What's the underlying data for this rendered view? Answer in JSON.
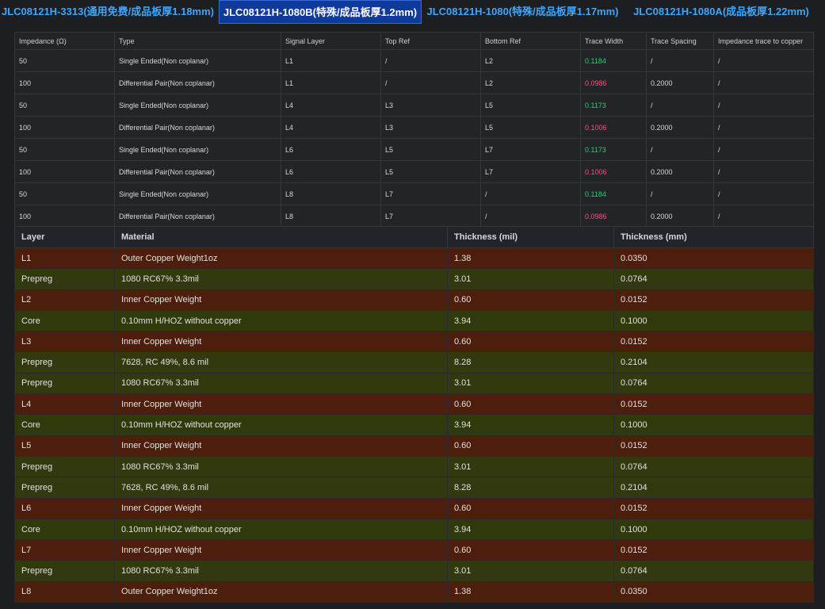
{
  "tabs": [
    {
      "label": "JLC08121H-3313(通用免费/成品板厚1.18mm)",
      "active": false
    },
    {
      "label": "JLC08121H-1080B(特殊/成品板厚1.2mm)",
      "active": true
    },
    {
      "label": "JLC08121H-1080(特殊/成品板厚1.17mm)",
      "active": false
    },
    {
      "label": "JLC08121H-1080A(成品板厚1.22mm)",
      "active": false
    }
  ],
  "impedance_table": {
    "headers": [
      "Impedance (Ω)",
      "Type",
      "Signal Layer",
      "Top Ref",
      "Bottom Ref",
      "Trace Width",
      "Trace Spacing",
      "Impedance trace to copper"
    ],
    "rows": [
      [
        "50",
        "Single Ended(Non coplanar)",
        "L1",
        "/",
        "L2",
        "0.1184",
        "/",
        "/"
      ],
      [
        "100",
        "Differential Pair(Non coplanar)",
        "L1",
        "/",
        "L2",
        "0.0986",
        "0.2000",
        "/"
      ],
      [
        "50",
        "Single Ended(Non coplanar)",
        "L4",
        "L3",
        "L5",
        "0.1173",
        "/",
        "/"
      ],
      [
        "100",
        "Differential Pair(Non coplanar)",
        "L4",
        "L3",
        "L5",
        "0.1006",
        "0.2000",
        "/"
      ],
      [
        "50",
        "Single Ended(Non coplanar)",
        "L6",
        "L5",
        "L7",
        "0.1173",
        "/",
        "/"
      ],
      [
        "100",
        "Differential Pair(Non coplanar)",
        "L6",
        "L5",
        "L7",
        "0.1006",
        "0.2000",
        "/"
      ],
      [
        "50",
        "Single Ended(Non coplanar)",
        "L8",
        "L7",
        "/",
        "0.1184",
        "/",
        "/"
      ],
      [
        "100",
        "Differential Pair(Non coplanar)",
        "L8",
        "L7",
        "/",
        "0.0986",
        "0.2000",
        "/"
      ]
    ],
    "trace_width_colors": [
      "#2ecc71",
      "#ff4d7a",
      "#2ecc71",
      "#ff4d7a",
      "#2ecc71",
      "#ff4d7a",
      "#2ecc71",
      "#ff4d7a"
    ]
  },
  "stackup_table": {
    "headers": [
      "Layer",
      "Material",
      "Thickness (mil)",
      "Thickness (mm)"
    ],
    "rows": [
      [
        "L1",
        "Outer Copper Weight1oz",
        "1.38",
        "0.0350"
      ],
      [
        "Prepreg",
        "1080 RC67% 3.3mil",
        "3.01",
        "0.0764"
      ],
      [
        "L2",
        "Inner Copper Weight",
        "0.60",
        "0.0152"
      ],
      [
        "Core",
        "0.10mm H/HOZ without copper",
        "3.94",
        "0.1000"
      ],
      [
        "L3",
        "Inner Copper Weight",
        "0.60",
        "0.0152"
      ],
      [
        "Prepreg",
        "7628, RC 49%, 8.6 mil",
        "8.28",
        "0.2104"
      ],
      [
        "Prepreg",
        "1080 RC67% 3.3mil",
        "3.01",
        "0.0764"
      ],
      [
        "L4",
        "Inner Copper Weight",
        "0.60",
        "0.0152"
      ],
      [
        "Core",
        "0.10mm H/HOZ without copper",
        "3.94",
        "0.1000"
      ],
      [
        "L5",
        "Inner Copper Weight",
        "0.60",
        "0.0152"
      ],
      [
        "Prepreg",
        "1080 RC67% 3.3mil",
        "3.01",
        "0.0764"
      ],
      [
        "Prepreg",
        "7628, RC 49%, 8.6 mil",
        "8.28",
        "0.2104"
      ],
      [
        "L6",
        "Inner Copper Weight",
        "0.60",
        "0.0152"
      ],
      [
        "Core",
        "0.10mm H/HOZ without copper",
        "3.94",
        "0.1000"
      ],
      [
        "L7",
        "Inner Copper Weight",
        "0.60",
        "0.0152"
      ],
      [
        "Prepreg",
        "1080 RC67% 3.3mil",
        "3.01",
        "0.0764"
      ],
      [
        "L8",
        "Outer Copper Weight1oz",
        "1.38",
        "0.0350"
      ]
    ],
    "row_colors": [
      "#4e1e0c",
      "#33390f",
      "#4e1e0c",
      "#2f3a0c",
      "#4e1e0c",
      "#33390f",
      "#33390f",
      "#4e1e0c",
      "#2f3a0c",
      "#4e1e0c",
      "#33390f",
      "#33390f",
      "#4e1e0c",
      "#2f3a0c",
      "#4e1e0c",
      "#33390f",
      "#4e1e0c"
    ]
  }
}
